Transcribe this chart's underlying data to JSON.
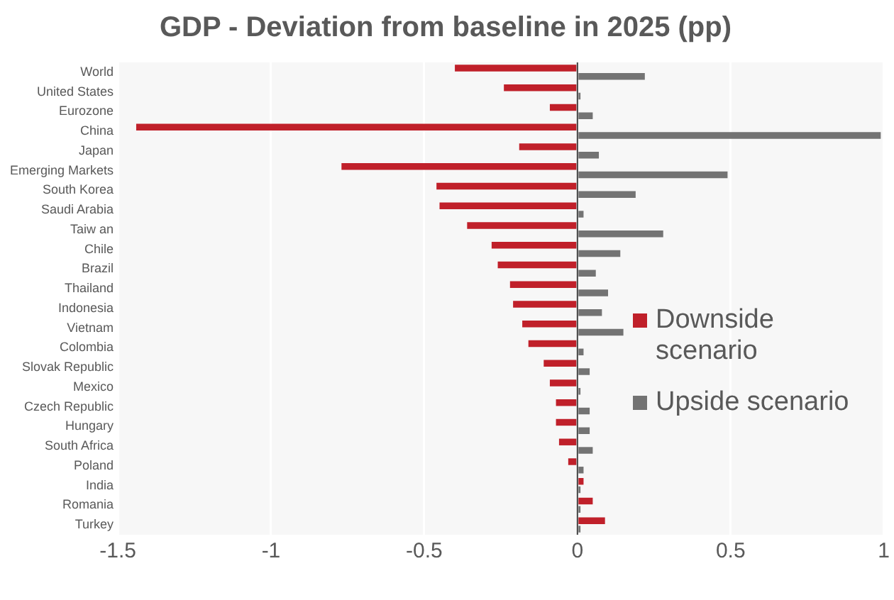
{
  "chart_data": {
    "type": "bar",
    "orientation": "horizontal",
    "title": "GDP - Deviation from baseline in 2025 (pp)",
    "categories": [
      "World",
      "United States",
      "Eurozone",
      "China",
      "Japan",
      "Emerging Markets",
      "South Korea",
      "Saudi Arabia",
      "Taiw an",
      "Chile",
      "Brazil",
      "Thailand",
      "Indonesia",
      "Vietnam",
      "Colombia",
      "Slovak Republic",
      "Mexico",
      "Czech Republic",
      "Hungary",
      "South Africa",
      "Poland",
      "India",
      "Romania",
      "Turkey"
    ],
    "series": [
      {
        "name": "Downside scenario",
        "color": "#c0202a",
        "values": [
          -0.4,
          -0.24,
          -0.09,
          -1.44,
          -0.19,
          -0.77,
          -0.46,
          -0.45,
          -0.36,
          -0.28,
          -0.26,
          -0.22,
          -0.21,
          -0.18,
          -0.16,
          -0.11,
          -0.09,
          -0.07,
          -0.07,
          -0.06,
          -0.03,
          0.02,
          0.05,
          0.09
        ]
      },
      {
        "name": "Upside scenario",
        "color": "#737373",
        "values": [
          0.22,
          0.01,
          0.05,
          0.99,
          0.07,
          0.49,
          0.19,
          0.02,
          0.28,
          0.14,
          0.06,
          0.1,
          0.08,
          0.15,
          0.02,
          0.04,
          0.01,
          0.04,
          0.04,
          0.05,
          0.02,
          0.01,
          0.01,
          0.01
        ]
      }
    ],
    "xlim": [
      -1.5,
      1
    ],
    "xticks": [
      -1.5,
      -1,
      -0.5,
      0,
      0.5,
      1
    ],
    "grid": "x",
    "legend": "right"
  }
}
